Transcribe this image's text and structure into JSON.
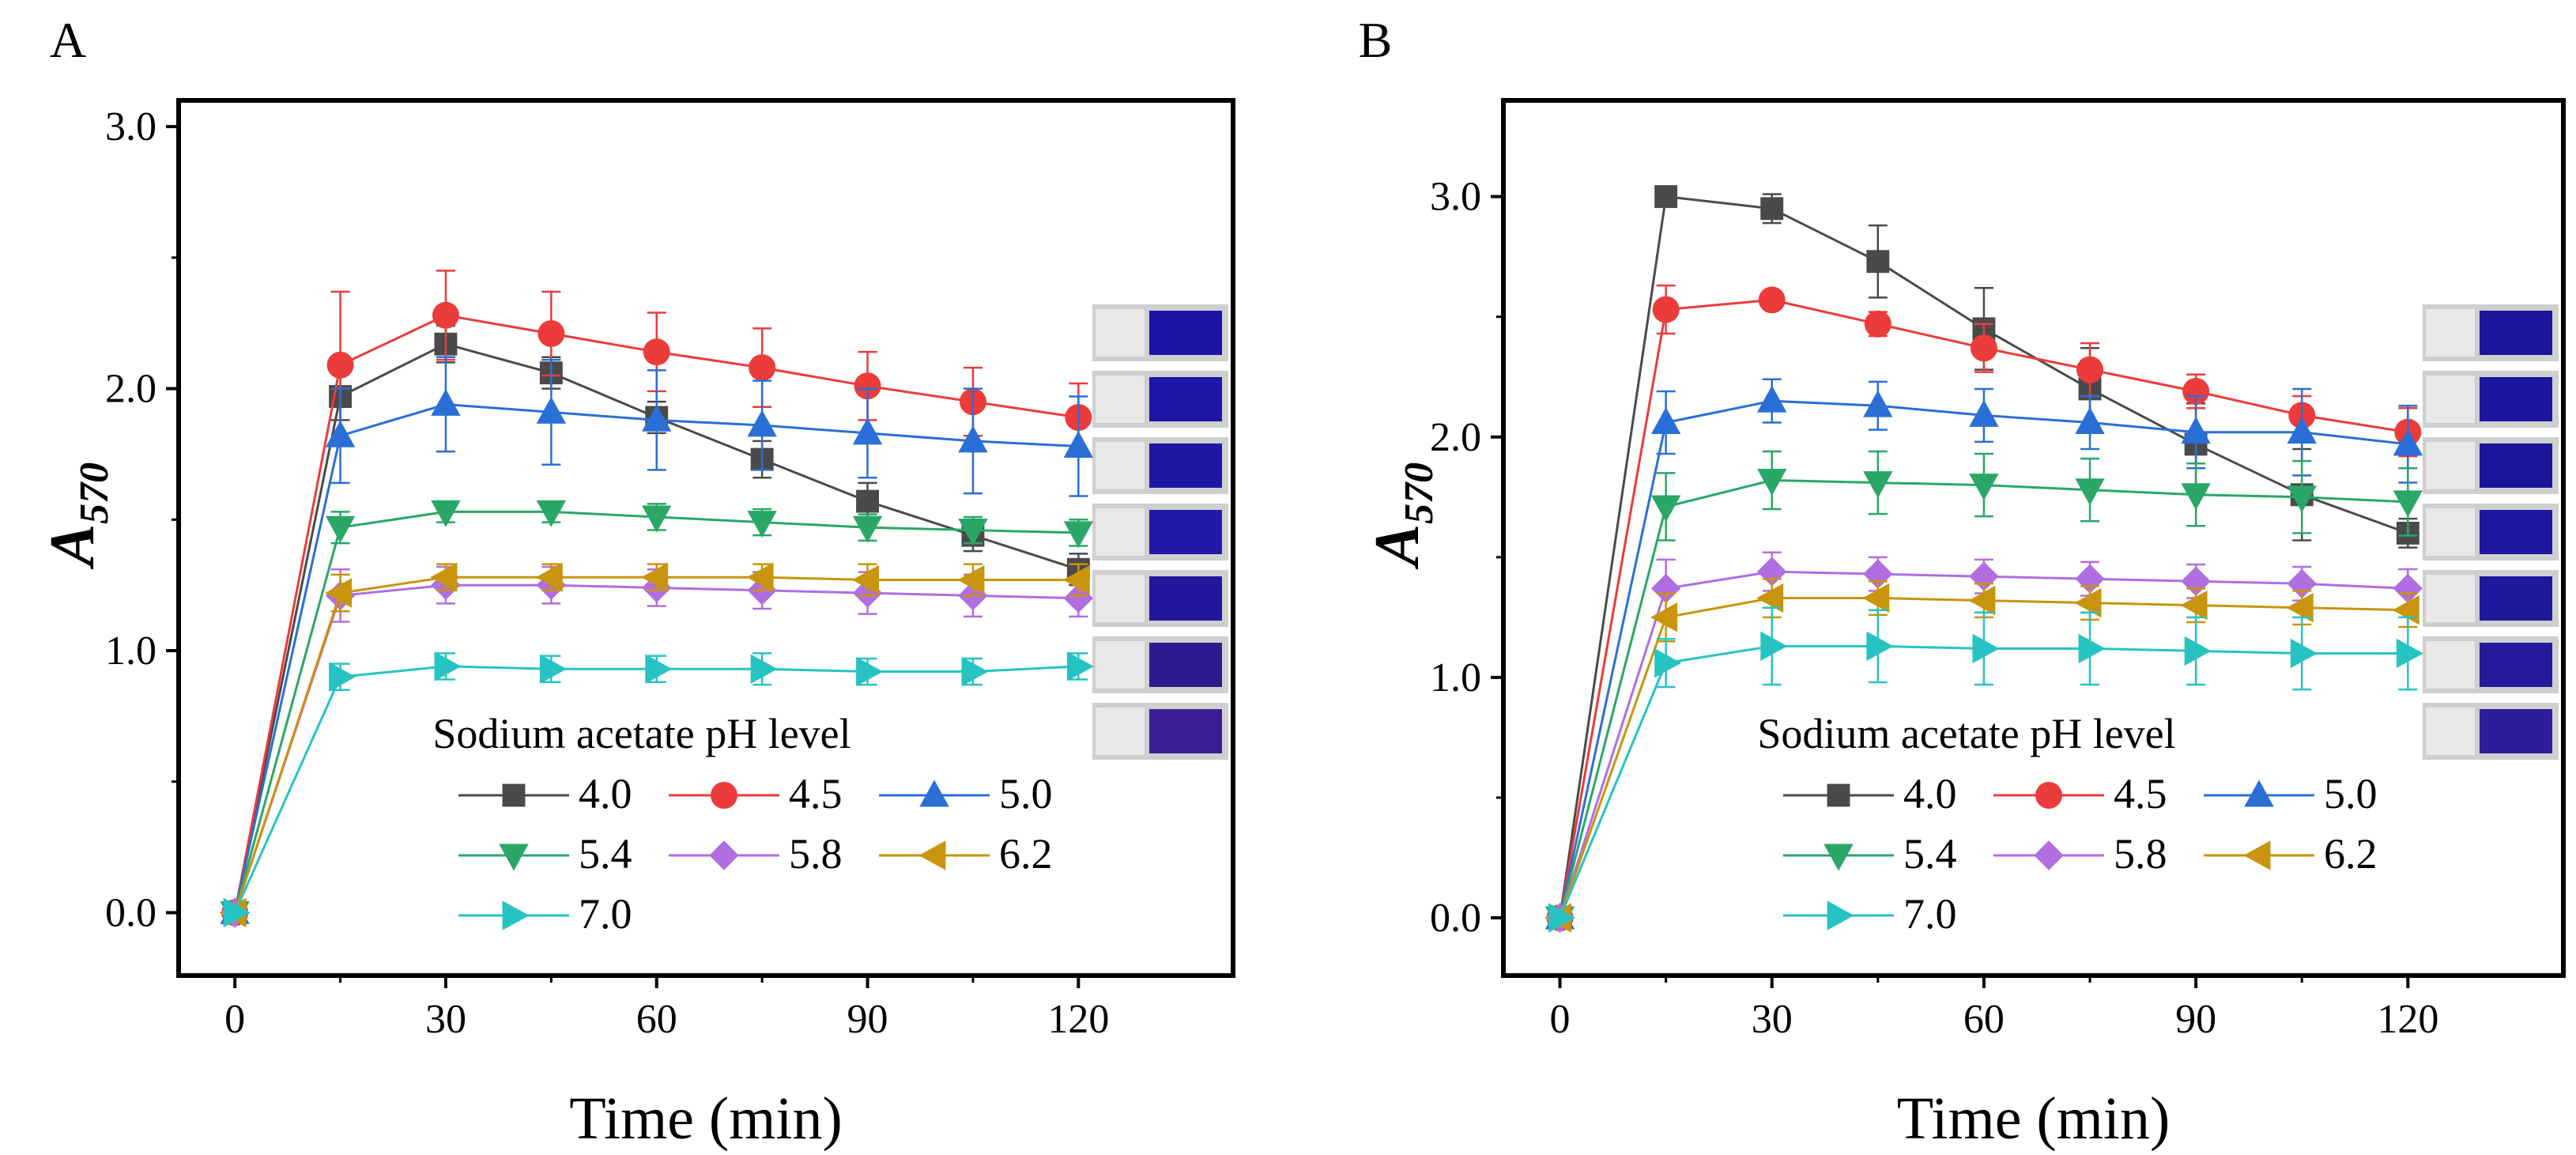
{
  "figure": {
    "xlabel": "Time (min)",
    "ylabel_main": "A",
    "ylabel_sub": "570",
    "legend_title": "Sodium acetate pH level"
  },
  "chart_data": [
    {
      "type": "line",
      "panel_label": "A",
      "title": "",
      "xlabel": "Time (min)",
      "ylabel": "A570",
      "xlim": [
        -8,
        142
      ],
      "ylim": [
        -0.24,
        3.1
      ],
      "xticks": [
        0,
        30,
        60,
        90,
        120
      ],
      "xtick_labels": [
        "0",
        "30",
        "60",
        "90",
        "120"
      ],
      "yticks": [
        0,
        1,
        2,
        3
      ],
      "ytick_labels": [
        "0.0",
        "1.0",
        "2.0",
        "3.0"
      ],
      "grid": false,
      "legend_title": "Sodium acetate pH level",
      "legend_position": "lower-right",
      "cuvette_swatches": [
        "#1a14a6",
        "#1d16a8",
        "#1f17a4",
        "#2218a8",
        "#23169d",
        "#2c1a8e",
        "#3b1d93"
      ],
      "x": [
        0,
        15,
        30,
        45,
        60,
        75,
        90,
        105,
        120
      ],
      "series": [
        {
          "name": "4.0",
          "color": "#4a4a4a",
          "marker": "square",
          "values": [
            0,
            1.97,
            2.17,
            2.06,
            1.89,
            1.73,
            1.57,
            1.44,
            1.31
          ],
          "errors": [
            0,
            0.09,
            0.07,
            0.06,
            0.06,
            0.07,
            0.07,
            0.06,
            0.06
          ]
        },
        {
          "name": "4.5",
          "color": "#ec3b3b",
          "marker": "circle",
          "values": [
            0,
            2.09,
            2.28,
            2.21,
            2.14,
            2.08,
            2.01,
            1.95,
            1.89
          ],
          "errors": [
            0,
            0.28,
            0.17,
            0.16,
            0.15,
            0.15,
            0.13,
            0.13,
            0.13
          ]
        },
        {
          "name": "5.0",
          "color": "#2a6fd6",
          "marker": "triangle-up",
          "values": [
            0,
            1.82,
            1.94,
            1.91,
            1.88,
            1.86,
            1.83,
            1.8,
            1.78
          ],
          "errors": [
            0,
            0.18,
            0.18,
            0.2,
            0.19,
            0.17,
            0.17,
            0.2,
            0.19
          ]
        },
        {
          "name": "5.4",
          "color": "#2aa766",
          "marker": "triangle-down",
          "values": [
            0,
            1.47,
            1.53,
            1.53,
            1.51,
            1.49,
            1.47,
            1.46,
            1.45
          ],
          "errors": [
            0,
            0.06,
            0.04,
            0.04,
            0.05,
            0.05,
            0.05,
            0.05,
            0.05
          ]
        },
        {
          "name": "5.8",
          "color": "#b06ee0",
          "marker": "diamond",
          "values": [
            0,
            1.21,
            1.25,
            1.25,
            1.24,
            1.23,
            1.22,
            1.21,
            1.2
          ],
          "errors": [
            0,
            0.1,
            0.07,
            0.07,
            0.07,
            0.07,
            0.08,
            0.08,
            0.07
          ]
        },
        {
          "name": "6.2",
          "color": "#c9940e",
          "marker": "triangle-left",
          "values": [
            0,
            1.22,
            1.28,
            1.28,
            1.28,
            1.28,
            1.27,
            1.27,
            1.27
          ],
          "errors": [
            0,
            0.07,
            0.05,
            0.05,
            0.05,
            0.05,
            0.06,
            0.06,
            0.06
          ]
        },
        {
          "name": "7.0",
          "color": "#27c3c3",
          "marker": "triangle-right",
          "values": [
            0,
            0.9,
            0.94,
            0.93,
            0.93,
            0.93,
            0.92,
            0.92,
            0.94
          ],
          "errors": [
            0,
            0.05,
            0.05,
            0.05,
            0.05,
            0.06,
            0.05,
            0.05,
            0.05
          ]
        }
      ]
    },
    {
      "type": "line",
      "panel_label": "B",
      "title": "",
      "xlabel": "Time (min)",
      "ylabel": "A570",
      "xlim": [
        -8,
        142
      ],
      "ylim": [
        -0.24,
        3.4
      ],
      "xticks": [
        0,
        30,
        60,
        90,
        120
      ],
      "xtick_labels": [
        "0",
        "30",
        "60",
        "90",
        "120"
      ],
      "yticks": [
        0,
        1,
        2,
        3
      ],
      "ytick_labels": [
        "0.0",
        "1.0",
        "2.0",
        "3.0"
      ],
      "grid": false,
      "legend_title": "Sodium acetate pH level",
      "legend_position": "lower-right",
      "cuvette_swatches": [
        "#1a159b",
        "#1b16a0",
        "#1a1598",
        "#1d17a0",
        "#1e189a",
        "#241a9c",
        "#2d1d9c"
      ],
      "x": [
        0,
        15,
        30,
        45,
        60,
        75,
        90,
        105,
        120
      ],
      "series": [
        {
          "name": "4.0",
          "color": "#4a4a4a",
          "marker": "square",
          "values": [
            0,
            3.0,
            2.95,
            2.73,
            2.45,
            2.2,
            1.97,
            1.76,
            1.6
          ],
          "errors": [
            0,
            0.02,
            0.06,
            0.15,
            0.17,
            0.17,
            0.17,
            0.19,
            0.06
          ]
        },
        {
          "name": "4.5",
          "color": "#ec3b3b",
          "marker": "circle",
          "values": [
            0,
            2.53,
            2.57,
            2.47,
            2.37,
            2.28,
            2.19,
            2.09,
            2.02
          ],
          "errors": [
            0,
            0.1,
            0.03,
            0.05,
            0.1,
            0.11,
            0.07,
            0.08,
            0.1
          ]
        },
        {
          "name": "5.0",
          "color": "#2a6fd6",
          "marker": "triangle-up",
          "values": [
            0,
            2.06,
            2.15,
            2.13,
            2.09,
            2.06,
            2.02,
            2.02,
            1.97
          ],
          "errors": [
            0,
            0.13,
            0.09,
            0.1,
            0.11,
            0.11,
            0.15,
            0.18,
            0.16
          ]
        },
        {
          "name": "5.4",
          "color": "#2aa766",
          "marker": "triangle-down",
          "values": [
            0,
            1.71,
            1.82,
            1.81,
            1.8,
            1.78,
            1.76,
            1.75,
            1.73
          ],
          "errors": [
            0,
            0.14,
            0.12,
            0.13,
            0.13,
            0.13,
            0.13,
            0.15,
            0.14
          ]
        },
        {
          "name": "5.8",
          "color": "#b06ee0",
          "marker": "diamond",
          "values": [
            0,
            1.37,
            1.44,
            1.43,
            1.42,
            1.41,
            1.4,
            1.39,
            1.37
          ],
          "errors": [
            0,
            0.12,
            0.08,
            0.07,
            0.07,
            0.07,
            0.07,
            0.07,
            0.08
          ]
        },
        {
          "name": "6.2",
          "color": "#c9940e",
          "marker": "triangle-left",
          "values": [
            0,
            1.25,
            1.33,
            1.33,
            1.32,
            1.31,
            1.3,
            1.29,
            1.28
          ],
          "errors": [
            0,
            0.1,
            0.08,
            0.07,
            0.07,
            0.07,
            0.07,
            0.07,
            0.07
          ]
        },
        {
          "name": "7.0",
          "color": "#27c3c3",
          "marker": "triangle-right",
          "values": [
            0,
            1.06,
            1.13,
            1.13,
            1.12,
            1.12,
            1.11,
            1.1,
            1.1
          ],
          "errors": [
            0,
            0.1,
            0.16,
            0.15,
            0.15,
            0.15,
            0.14,
            0.15,
            0.15
          ]
        }
      ]
    }
  ]
}
